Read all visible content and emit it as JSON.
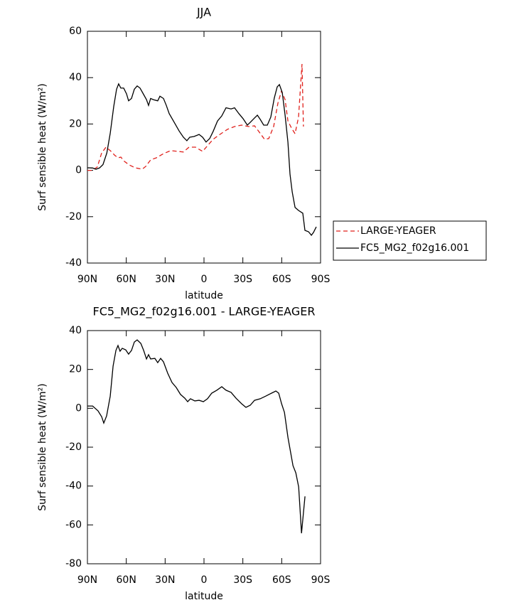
{
  "chart_data": [
    {
      "type": "line",
      "title": "JJA",
      "xlabel": "latitude",
      "ylabel": "Surf sensible heat (W/m²)",
      "xlim": [
        90,
        -90
      ],
      "xticks": [
        {
          "value": 90,
          "label": "90N"
        },
        {
          "value": 60,
          "label": "60N"
        },
        {
          "value": 30,
          "label": "30N"
        },
        0,
        {
          "value": -30,
          "label": "30S"
        },
        {
          "value": -60,
          "label": "60S"
        },
        {
          "value": -90,
          "label": "90S"
        }
      ],
      "ylim": [
        -40,
        60
      ],
      "yticks": [
        -40,
        -20,
        0,
        20,
        40,
        60
      ],
      "legend": "right",
      "series": [
        {
          "name": "LARGE-YEAGER",
          "color": "#e0201b",
          "dash": true,
          "x": [
            90,
            86,
            82.3,
            79,
            75.7,
            72.4,
            69.1,
            66.4,
            64.2,
            61.5,
            57.6,
            53.2,
            47.7,
            45,
            41.2,
            36.8,
            31.3,
            25.8,
            20.3,
            15.9,
            11.5,
            6.6,
            1.1,
            -2.7,
            -7.1,
            -11.5,
            -18.1,
            -23.6,
            -29,
            -34.5,
            -39,
            -42.8,
            -46.7,
            -50,
            -53.8,
            -57.1,
            -59.8,
            -62.6,
            -64.8,
            -67.5,
            -70.3,
            -73,
            -75.7,
            -76.8
          ],
          "values": [
            0,
            0,
            1.5,
            7.5,
            10,
            8.5,
            6.6,
            5.4,
            5.7,
            3.9,
            2.3,
            1.1,
            0.5,
            1.7,
            4.5,
            5.4,
            7.2,
            8.5,
            8.2,
            7.9,
            10,
            10,
            8.2,
            10.6,
            13.4,
            15.2,
            17.7,
            18.9,
            19.5,
            18.9,
            19.2,
            16.4,
            13.4,
            13.7,
            18.9,
            29,
            34.2,
            30.5,
            21.3,
            18.3,
            15.8,
            22.9,
            45.9,
            18.9
          ]
        },
        {
          "name": "FC5_MG2_f02g16.001",
          "color": "#000000",
          "dash": false,
          "x": [
            90,
            86,
            83.4,
            80.7,
            78,
            75,
            72.4,
            69.7,
            67.5,
            65.9,
            64.2,
            62,
            59.8,
            58.2,
            56,
            53.8,
            51.6,
            49.4,
            47.2,
            44.4,
            42.8,
            41.2,
            39,
            35.7,
            34,
            31.3,
            29.1,
            26.9,
            23,
            19.2,
            15.9,
            13.2,
            11,
            7.7,
            3.8,
            1.1,
            -1.6,
            -4.4,
            -7.1,
            -10.4,
            -13.7,
            -17,
            -20.9,
            -23.6,
            -26.9,
            -30.2,
            -33.5,
            -35.7,
            -39,
            -41.2,
            -43.4,
            -46.1,
            -48.9,
            -51.6,
            -54.3,
            -56.5,
            -58.2,
            -60.4,
            -62.6,
            -64.8,
            -66.4,
            -68.1,
            -70.3,
            -73,
            -76.3,
            -77.9,
            -80.7,
            -82.9,
            -84.5,
            -86.7
          ],
          "values": [
            1.1,
            1,
            0.5,
            1,
            2.5,
            7.5,
            16,
            27.5,
            35,
            37.3,
            35.5,
            35.5,
            33,
            30,
            31,
            35,
            36.4,
            35.5,
            33.3,
            30.5,
            28,
            31,
            30.5,
            30,
            32,
            31,
            28,
            24.5,
            20.7,
            17,
            14.3,
            12.8,
            14.3,
            14.6,
            15.5,
            14.3,
            12.2,
            13.7,
            16.8,
            21.3,
            23.5,
            27,
            26.5,
            27,
            24.5,
            22.3,
            19.5,
            20.7,
            22.6,
            23.8,
            22,
            19.5,
            19.5,
            23,
            31.2,
            36,
            37,
            33.6,
            23.8,
            12.1,
            -1.6,
            -9.3,
            -16,
            -17.3,
            -18.5,
            -25.9,
            -26.5,
            -28,
            -26.8,
            -24.4
          ]
        }
      ]
    },
    {
      "type": "line",
      "title": "FC5_MG2_f02g16.001 - LARGE-YEAGER",
      "xlabel": "latitude",
      "ylabel": "Surf sensible heat (W/m²)",
      "xlim": [
        90,
        -90
      ],
      "xticks": [
        {
          "value": 90,
          "label": "90N"
        },
        {
          "value": 60,
          "label": "60N"
        },
        {
          "value": 30,
          "label": "30N"
        },
        0,
        {
          "value": -30,
          "label": "30S"
        },
        {
          "value": -60,
          "label": "60S"
        },
        {
          "value": -90,
          "label": "90S"
        }
      ],
      "ylim": [
        -80,
        40
      ],
      "yticks": [
        -80,
        -60,
        -40,
        -20,
        0,
        20,
        40
      ],
      "series": [
        {
          "color": "#000000",
          "dash": false,
          "x": [
            90,
            86,
            81.8,
            79,
            77.4,
            75.2,
            72.4,
            70.2,
            68,
            66.4,
            64.8,
            63.1,
            60.4,
            58.2,
            56,
            53.8,
            51.6,
            48.8,
            46.6,
            44.4,
            42.8,
            41.2,
            37.9,
            35.7,
            33.5,
            31.3,
            28,
            24.7,
            21.4,
            18.1,
            14.8,
            12.6,
            10.4,
            7.1,
            3.8,
            0.5,
            -2.7,
            -6,
            -9.9,
            -13.7,
            -17,
            -20.9,
            -24.7,
            -29.1,
            -32.4,
            -35.7,
            -39,
            -43.4,
            -47.8,
            -52.2,
            -55.5,
            -57.7,
            -59.9,
            -62.1,
            -64.8,
            -68.7,
            -70.9,
            -73.1,
            -75.3,
            -78
          ],
          "values": [
            1.2,
            1.2,
            -1.3,
            -4.3,
            -7.6,
            -3.9,
            6.3,
            21.7,
            29.8,
            32.3,
            29.4,
            30.9,
            30.1,
            27.9,
            29.8,
            34.1,
            35.2,
            33.4,
            29.8,
            25.4,
            27.6,
            25.4,
            25.7,
            23.5,
            25.7,
            23.9,
            18,
            13.3,
            10.7,
            7.1,
            5.2,
            3.4,
            4.9,
            3.8,
            4.1,
            3.4,
            4.9,
            7.8,
            9.3,
            11.1,
            9.3,
            8.2,
            5.2,
            2.3,
            0.5,
            1.6,
            4.1,
            4.9,
            6.3,
            7.8,
            8.9,
            7.8,
            2.3,
            -2.1,
            -14.9,
            -29.5,
            -33.2,
            -40.5,
            -64.3,
            -45.3
          ]
        }
      ]
    }
  ]
}
